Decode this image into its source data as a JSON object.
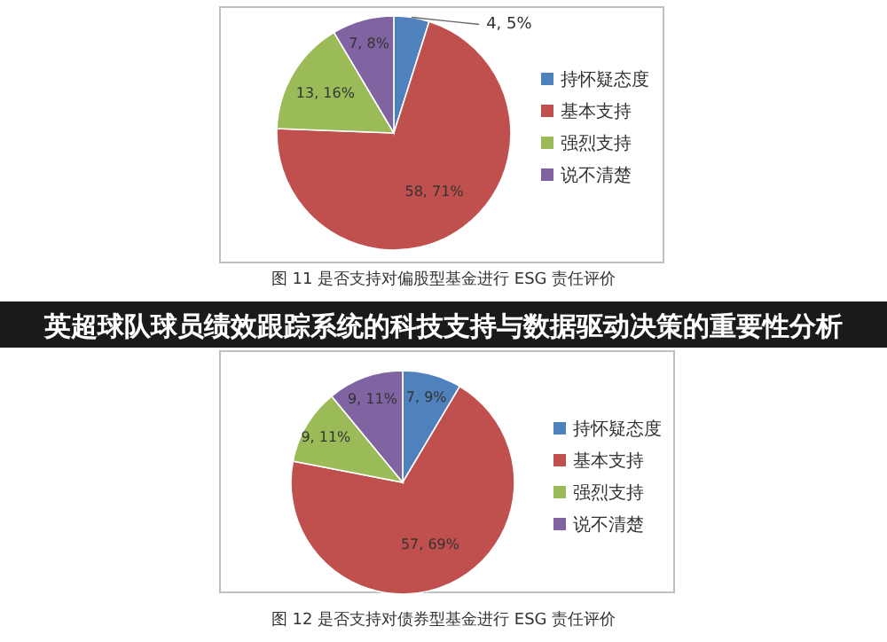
{
  "chart_data": [
    {
      "type": "pie",
      "title": "图 11 是否支持对偏股型基金进行 ESG 责任评价",
      "annotations": [
        "英超球队球员绩效跟踪系统的科技支持与数据驱动决策的重要性分析"
      ],
      "categories": [
        "持怀疑态度",
        "基本支持",
        "强烈支持",
        "说不清楚"
      ],
      "values": [
        4,
        58,
        13,
        7
      ],
      "colors": [
        "#4f81bd",
        "#c0504d",
        "#9bbb59",
        "#8064a2"
      ],
      "value_labels": [
        "4, 5%",
        "58, 71%",
        "13, 16%",
        "7, 8%"
      ],
      "legend": "right"
    },
    {
      "type": "pie",
      "title": "图 12 是否支持对债券型基金进行 ESG 责任评价",
      "categories": [
        "持怀疑态度",
        "基本支持",
        "强烈支持",
        "说不清楚"
      ],
      "values": [
        7,
        57,
        9,
        9
      ],
      "colors": [
        "#4f81bd",
        "#c0504d",
        "#9bbb59",
        "#8064a2"
      ],
      "value_labels": [
        "7, 9%",
        "57, 69%",
        "9, 11%",
        "9, 11%"
      ],
      "legend": "right"
    }
  ]
}
